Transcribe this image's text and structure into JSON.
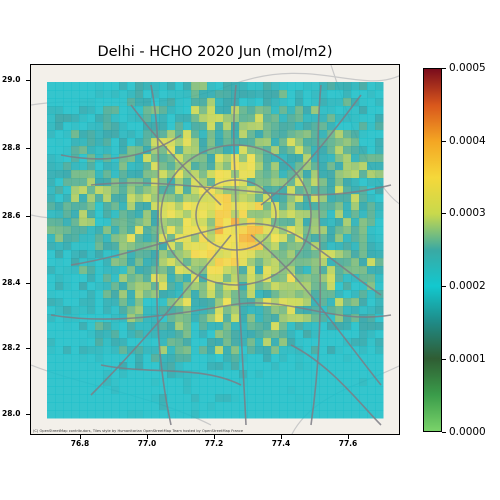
{
  "map": {
    "title": "Delhi - HCHO 2020 Jun (mol/m2)",
    "y_ticks": [
      "29.0",
      "28.8",
      "28.6",
      "28.4",
      "28.2",
      "28.0"
    ],
    "x_ticks": [
      "76.8",
      "77.0",
      "77.2",
      "77.4",
      "77.6"
    ],
    "attribution": "(C) OpenStreetMap contributors, Tiles style by Humanitarian OpenStreetMap Team hosted by OpenStreetMap France",
    "colorbar": {
      "ticks": [
        "0.0005",
        "0.0004",
        "0.0003",
        "0.0002",
        "0.0001",
        "0.0000"
      ],
      "colors": [
        "#7a0c1c",
        "#d9571c",
        "#f4a623",
        "#f5d83a",
        "#c8d94c",
        "#3aa9a3",
        "#12c8cf",
        "#1f8a86",
        "#2f5d33",
        "#3a9c4a",
        "#7ad36a"
      ]
    }
  }
}
